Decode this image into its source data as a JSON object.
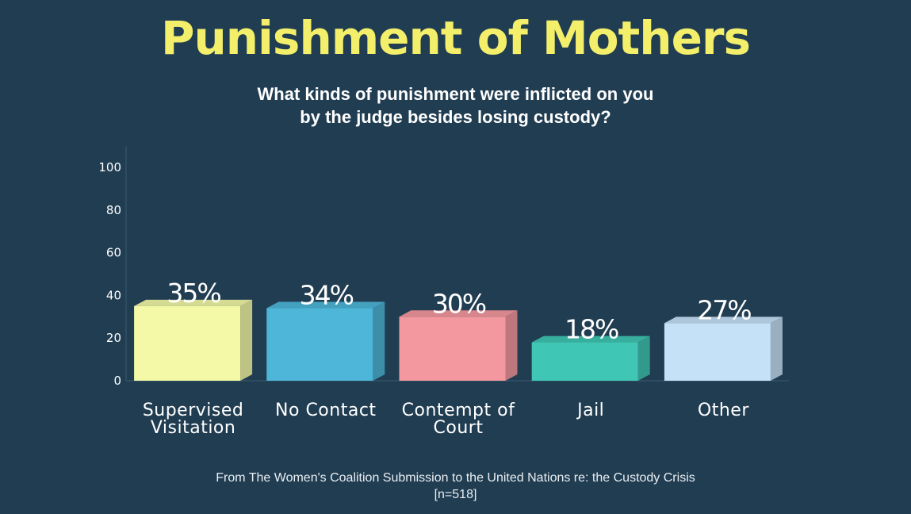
{
  "header": {
    "title": "Punishment of Mothers",
    "subtitle_lines": [
      "What kinds of punishment were inflicted on you",
      "by the judge besides losing custody?"
    ]
  },
  "footer": {
    "source_lines": [
      "From The Women's Coalition Submission to the United Nations re: the Custody Crisis",
      "[n=518]"
    ]
  },
  "chart_data": {
    "type": "bar",
    "style": "3d",
    "categories": [
      "Supervised Visitation",
      "No Contact",
      "Contempt of Court",
      "Jail",
      "Other"
    ],
    "category_lines": [
      [
        "Supervised",
        "Visitation"
      ],
      [
        "No Contact"
      ],
      [
        "Contempt of",
        "Court"
      ],
      [
        "Jail"
      ],
      [
        "Other"
      ]
    ],
    "values": [
      35,
      34,
      30,
      18,
      27
    ],
    "value_labels": [
      "35%",
      "34%",
      "30%",
      "18%",
      "27%"
    ],
    "colors": [
      "#f3f9a7",
      "#4db6d9",
      "#f4989f",
      "#40c6b5",
      "#c5e1f8"
    ],
    "yticks": [
      0,
      20,
      40,
      60,
      80,
      100
    ],
    "ylim": [
      0,
      110
    ],
    "grid": false,
    "legend": false
  }
}
